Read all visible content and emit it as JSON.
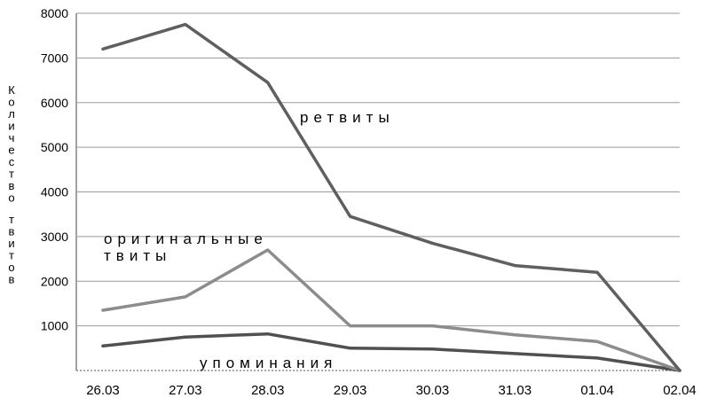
{
  "chart_data": {
    "type": "line",
    "title": "",
    "xlabel": "",
    "ylabel": "Количество твитов",
    "ylabel_lines": [
      "Количество",
      "твитов"
    ],
    "categories": [
      "26.03",
      "27.03",
      "28.03",
      "29.03",
      "30.03",
      "31.03",
      "01.04",
      "02.04"
    ],
    "yticks": [
      1000,
      2000,
      3000,
      4000,
      5000,
      6000,
      7000,
      8000
    ],
    "ylim": [
      0,
      8000
    ],
    "grid": true,
    "legend": "inline labels",
    "series": [
      {
        "name": "ретвиты",
        "label_lines": [
          "ретвиты"
        ],
        "color": "#5f5f5f",
        "values": [
          7200,
          7750,
          6450,
          3450,
          2850,
          2350,
          2200,
          0
        ]
      },
      {
        "name": "оригинальные твиты",
        "label_lines": [
          "оригинальные",
          "твиты"
        ],
        "color": "#8c8c8c",
        "values": [
          1350,
          1650,
          2700,
          1000,
          1000,
          800,
          650,
          0
        ]
      },
      {
        "name": "упоминания",
        "label_lines": [
          "упоминания"
        ],
        "color": "#505050",
        "values": [
          550,
          750,
          820,
          500,
          480,
          380,
          280,
          0
        ]
      }
    ]
  }
}
